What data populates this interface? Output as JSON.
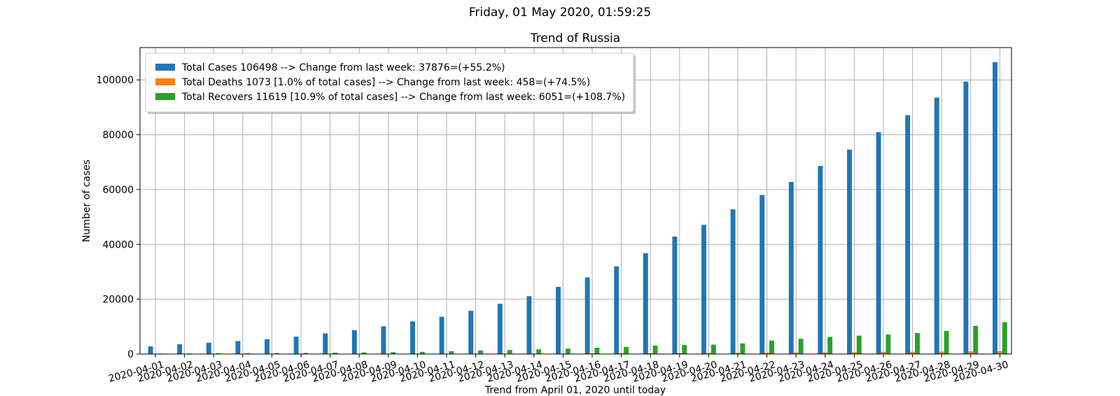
{
  "suptitle": "Friday, 01 May 2020, 01:59:25",
  "chart_data": {
    "type": "bar",
    "title": "Trend of Russia",
    "xlabel": "Trend from April 01, 2020 until today",
    "ylabel": "Number of cases",
    "ylim": [
      0,
      111800
    ],
    "yticks": [
      0,
      20000,
      40000,
      60000,
      80000,
      100000
    ],
    "grid": true,
    "legend_position": "upper-left",
    "categories": [
      "2020-04-01",
      "2020-04-02",
      "2020-04-03",
      "2020-04-04",
      "2020-04-05",
      "2020-04-06",
      "2020-04-07",
      "2020-04-08",
      "2020-04-09",
      "2020-04-10",
      "2020-04-11",
      "2020-04-12",
      "2020-04-13",
      "2020-04-14",
      "2020-04-15",
      "2020-04-16",
      "2020-04-17",
      "2020-04-18",
      "2020-04-19",
      "2020-04-20",
      "2020-04-21",
      "2020-04-22",
      "2020-04-23",
      "2020-04-24",
      "2020-04-25",
      "2020-04-26",
      "2020-04-27",
      "2020-04-28",
      "2020-04-29",
      "2020-04-30"
    ],
    "series": [
      {
        "name": "Total Cases 106498 --> Change from last week: 37876=(+55.2%)",
        "color": "#1f77b4",
        "values": [
          2777,
          3548,
          4149,
          4731,
          5389,
          6343,
          7497,
          8672,
          10131,
          11917,
          13584,
          15770,
          18328,
          21102,
          24490,
          27938,
          32008,
          36793,
          42853,
          47121,
          52763,
          57999,
          62773,
          68622,
          74588,
          80949,
          87147,
          93558,
          99399,
          106498
        ]
      },
      {
        "name": "Total Deaths 1073 [1.0% of total cases] --> Change from last week: 458=(+74.5%)",
        "color": "#ff7f0e",
        "values": [
          24,
          30,
          34,
          43,
          45,
          47,
          58,
          63,
          76,
          94,
          106,
          130,
          148,
          170,
          198,
          232,
          273,
          313,
          361,
          405,
          456,
          513,
          555,
          615,
          681,
          747,
          794,
          867,
          972,
          1073
        ]
      },
      {
        "name": "Total Recovers 11619 [10.9% of total cases] --> Change from last week: 6051=(+108.7%)",
        "color": "#2ca02c",
        "values": [
          190,
          235,
          281,
          333,
          355,
          406,
          494,
          580,
          698,
          794,
          1045,
          1291,
          1470,
          1694,
          1986,
          2304,
          2590,
          3057,
          3291,
          3446,
          3873,
          4891,
          5568,
          6250,
          6731,
          7108,
          7632,
          8420,
          10286,
          11619
        ]
      }
    ]
  }
}
